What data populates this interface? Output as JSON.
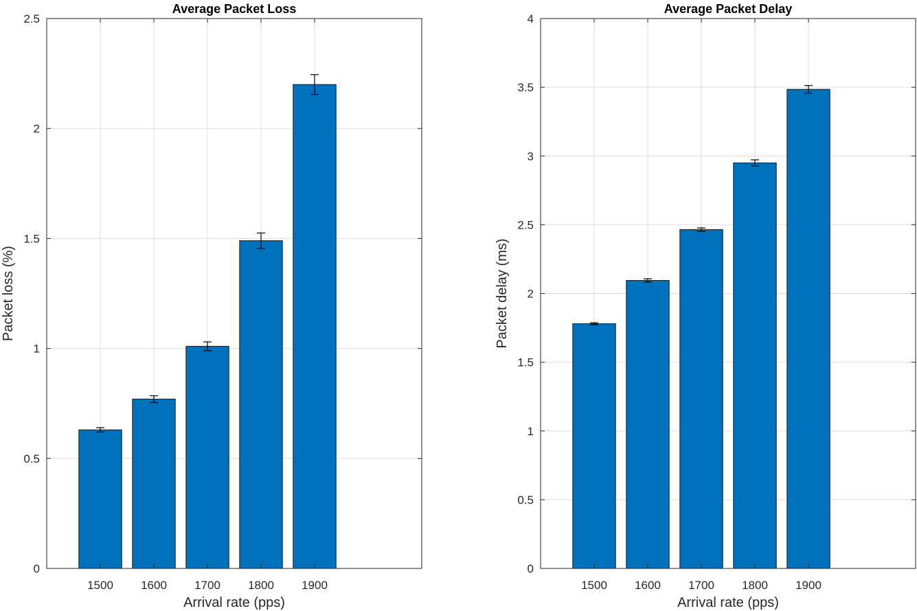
{
  "chart_data": [
    {
      "type": "bar",
      "title": "Average Packet Loss",
      "xlabel": "Arrival rate (pps)",
      "ylabel": "Packet loss (%)",
      "categories": [
        "1500",
        "1600",
        "1700",
        "1800",
        "1900"
      ],
      "values": [
        0.63,
        0.77,
        1.01,
        1.49,
        2.2
      ],
      "error": [
        0.01,
        0.015,
        0.02,
        0.035,
        0.045
      ],
      "ylim": [
        0,
        2.5
      ],
      "yticks": [
        "0",
        "0.5",
        "1",
        "1.5",
        "2",
        "2.5"
      ],
      "grid": true,
      "bar_color": "#0072BD"
    },
    {
      "type": "bar",
      "title": "Average Packet Delay",
      "xlabel": "Arrival rate (pps)",
      "ylabel": "Packet delay (ms)",
      "categories": [
        "1500",
        "1600",
        "1700",
        "1800",
        "1900"
      ],
      "values": [
        1.78,
        2.095,
        2.465,
        2.95,
        3.485
      ],
      "error": [
        0.007,
        0.012,
        0.012,
        0.022,
        0.028
      ],
      "ylim": [
        0,
        4
      ],
      "yticks": [
        "0",
        "0.5",
        "1",
        "1.5",
        "2",
        "2.5",
        "3",
        "3.5",
        "4"
      ],
      "grid": true,
      "bar_color": "#0072BD"
    }
  ]
}
